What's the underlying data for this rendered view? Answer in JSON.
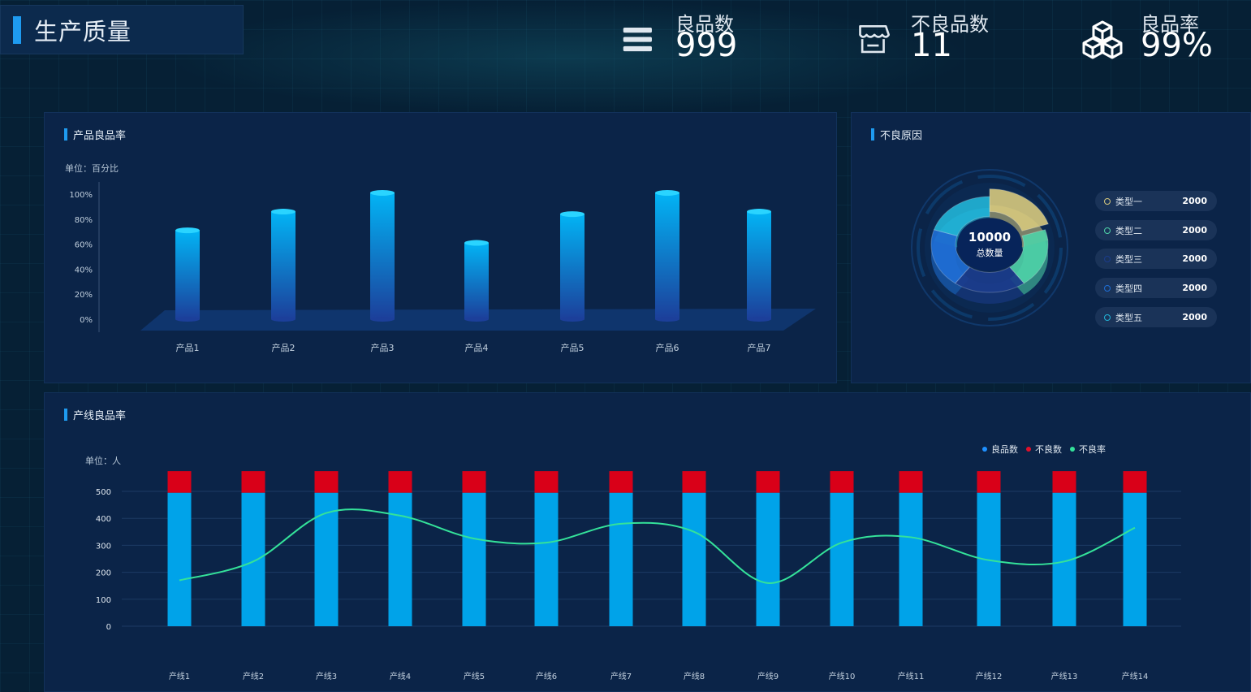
{
  "header": {
    "title": "生产质量"
  },
  "stats": [
    {
      "icon": "menu-icon",
      "label": "良品数",
      "value": "999"
    },
    {
      "icon": "store-icon",
      "label": "不良品数",
      "value": "11"
    },
    {
      "icon": "cubes-icon",
      "label": "良品率",
      "value": "99%"
    }
  ],
  "product_panel": {
    "title": "产品良品率",
    "unit": "单位：百分比"
  },
  "reason_panel": {
    "title": "不良原因",
    "center_value": "10000",
    "center_label": "总数量",
    "legend": [
      {
        "name": "类型一",
        "value": "2000",
        "color": "#d7c97e"
      },
      {
        "name": "类型二",
        "value": "2000",
        "color": "#4fd3a8"
      },
      {
        "name": "类型三",
        "value": "2000",
        "color": "#1b3c8c"
      },
      {
        "name": "类型四",
        "value": "2000",
        "color": "#1f6fd6"
      },
      {
        "name": "类型五",
        "value": "2000",
        "color": "#22b5d8"
      }
    ]
  },
  "line_panel": {
    "title": "产线良品率",
    "unit": "单位：人",
    "legend": [
      {
        "name": "良品数",
        "color": "#1e90ff"
      },
      {
        "name": "不良数",
        "color": "#e0102a"
      },
      {
        "name": "不良率",
        "color": "#34e29a"
      }
    ]
  },
  "chart_data": [
    {
      "type": "bar",
      "categories": [
        "产品1",
        "产品2",
        "产品3",
        "产品4",
        "产品5",
        "产品6",
        "产品7"
      ],
      "values": [
        71,
        86,
        101,
        61,
        84,
        101,
        86
      ],
      "yticks": [
        "0%",
        "20%",
        "40%",
        "60%",
        "80%",
        "100%"
      ],
      "ylim": [
        0,
        100
      ]
    },
    {
      "type": "pie",
      "labels": [
        "类型一",
        "类型二",
        "类型三",
        "类型四",
        "类型五"
      ],
      "values": [
        2000,
        2000,
        2000,
        2000,
        2000
      ]
    },
    {
      "type": "bar",
      "categories": [
        "产线1",
        "产线2",
        "产线3",
        "产线4",
        "产线5",
        "产线6",
        "产线7",
        "产线8",
        "产线9",
        "产线10",
        "产线11",
        "产线12",
        "产线13",
        "产线14"
      ],
      "series": [
        {
          "name": "良品数",
          "values": [
            495,
            495,
            495,
            495,
            495,
            495,
            495,
            495,
            495,
            495,
            495,
            495,
            495,
            495
          ]
        },
        {
          "name": "不良数",
          "values": [
            80,
            80,
            80,
            80,
            80,
            80,
            80,
            80,
            80,
            80,
            80,
            80,
            80,
            80
          ]
        },
        {
          "name": "不良率",
          "values": [
            170,
            240,
            420,
            410,
            325,
            310,
            380,
            350,
            160,
            310,
            330,
            245,
            240,
            365
          ]
        }
      ],
      "yticks": [
        "0",
        "100",
        "200",
        "300",
        "400",
        "500"
      ],
      "ylim": [
        0,
        500
      ]
    }
  ]
}
